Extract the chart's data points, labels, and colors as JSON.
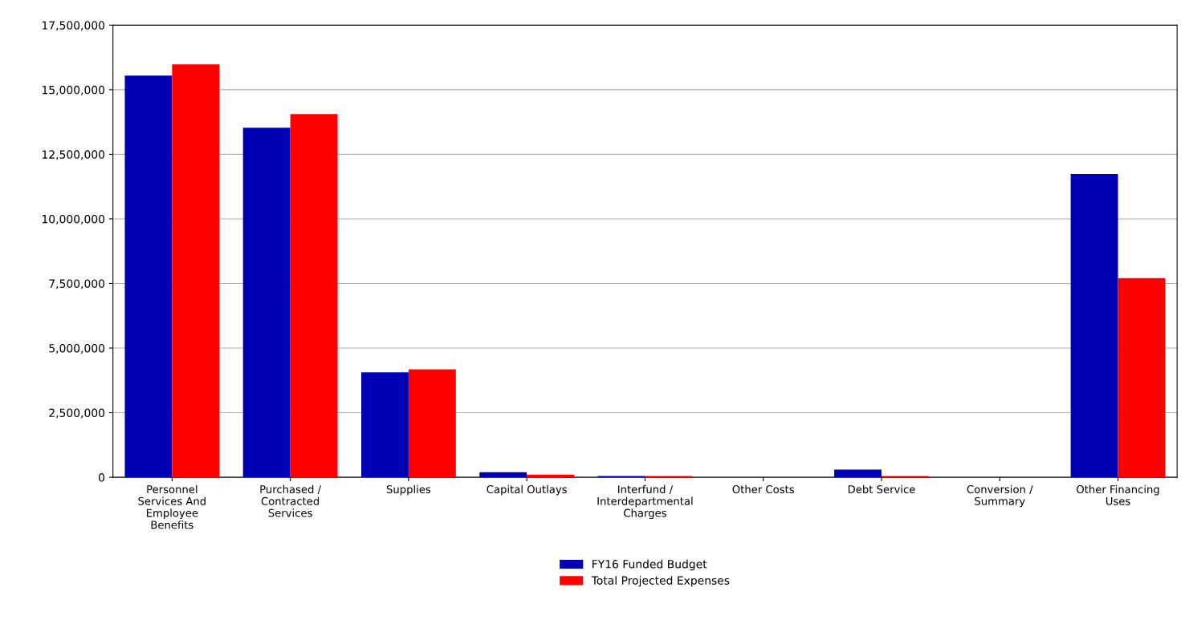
{
  "chart_data": {
    "type": "bar",
    "categories": [
      "Personnel\nServices And\nEmployee\nBenefits",
      "Purchased /\nContracted\nServices",
      "Supplies",
      "Capital Outlays",
      "Interfund /\nInterdepartmental\nCharges",
      "Other Costs",
      "Debt Service",
      "Conversion /\nSummary",
      "Other Financing\nUses"
    ],
    "series": [
      {
        "name": "FY16 Funded Budget",
        "color": "#0000b4",
        "values": [
          15550000,
          13530000,
          4060000,
          200000,
          50000,
          0,
          300000,
          0,
          11740000
        ]
      },
      {
        "name": "Total Projected Expenses",
        "color": "#ff0000",
        "values": [
          15980000,
          14060000,
          4180000,
          100000,
          50000,
          0,
          50000,
          0,
          7710000
        ]
      }
    ],
    "ylim": [
      0,
      17500000
    ],
    "yticks": [
      {
        "value": 0,
        "label": "0"
      },
      {
        "value": 2500000,
        "label": "2,500,000"
      },
      {
        "value": 5000000,
        "label": "5,000,000"
      },
      {
        "value": 7500000,
        "label": "7,500,000"
      },
      {
        "value": 10000000,
        "label": "10,000,000"
      },
      {
        "value": 12500000,
        "label": "12,500,000"
      },
      {
        "value": 15000000,
        "label": "15,000,000"
      },
      {
        "value": 17500000,
        "label": "17,500,000"
      }
    ],
    "grid": "y",
    "legend": "bottom"
  }
}
